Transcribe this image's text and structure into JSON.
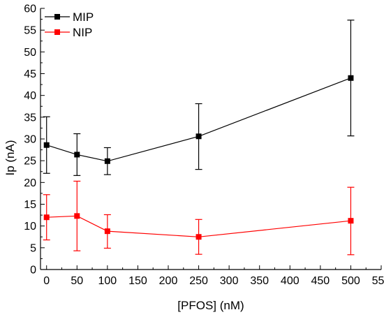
{
  "chart_data": {
    "type": "line",
    "xlabel": "[PFOS] (nM)",
    "ylabel": "Ip (nA)",
    "xlim": [
      -10,
      550
    ],
    "ylim": [
      0,
      60
    ],
    "xticks": [
      0,
      50,
      100,
      150,
      200,
      250,
      300,
      350,
      400,
      450,
      500,
      550
    ],
    "yticks": [
      0,
      5,
      10,
      15,
      20,
      25,
      30,
      35,
      40,
      45,
      50,
      55,
      60
    ],
    "legend_position": "top-left",
    "series": [
      {
        "name": "MIP",
        "color": "#000000",
        "marker": "square",
        "x": [
          0,
          50,
          100,
          250,
          500
        ],
        "y": [
          28.6,
          26.4,
          24.9,
          30.6,
          44.0
        ],
        "err_low": [
          22.1,
          21.6,
          21.8,
          23.0,
          30.7
        ],
        "err_high": [
          35.1,
          31.2,
          28.0,
          38.1,
          57.3
        ]
      },
      {
        "name": "NIP",
        "color": "#ff0000",
        "marker": "square",
        "x": [
          0,
          50,
          100,
          250,
          500
        ],
        "y": [
          12.0,
          12.3,
          8.8,
          7.5,
          11.2
        ],
        "err_low": [
          6.8,
          4.3,
          4.9,
          3.5,
          3.4
        ],
        "err_high": [
          17.2,
          20.3,
          12.6,
          11.5,
          18.9
        ]
      }
    ]
  }
}
